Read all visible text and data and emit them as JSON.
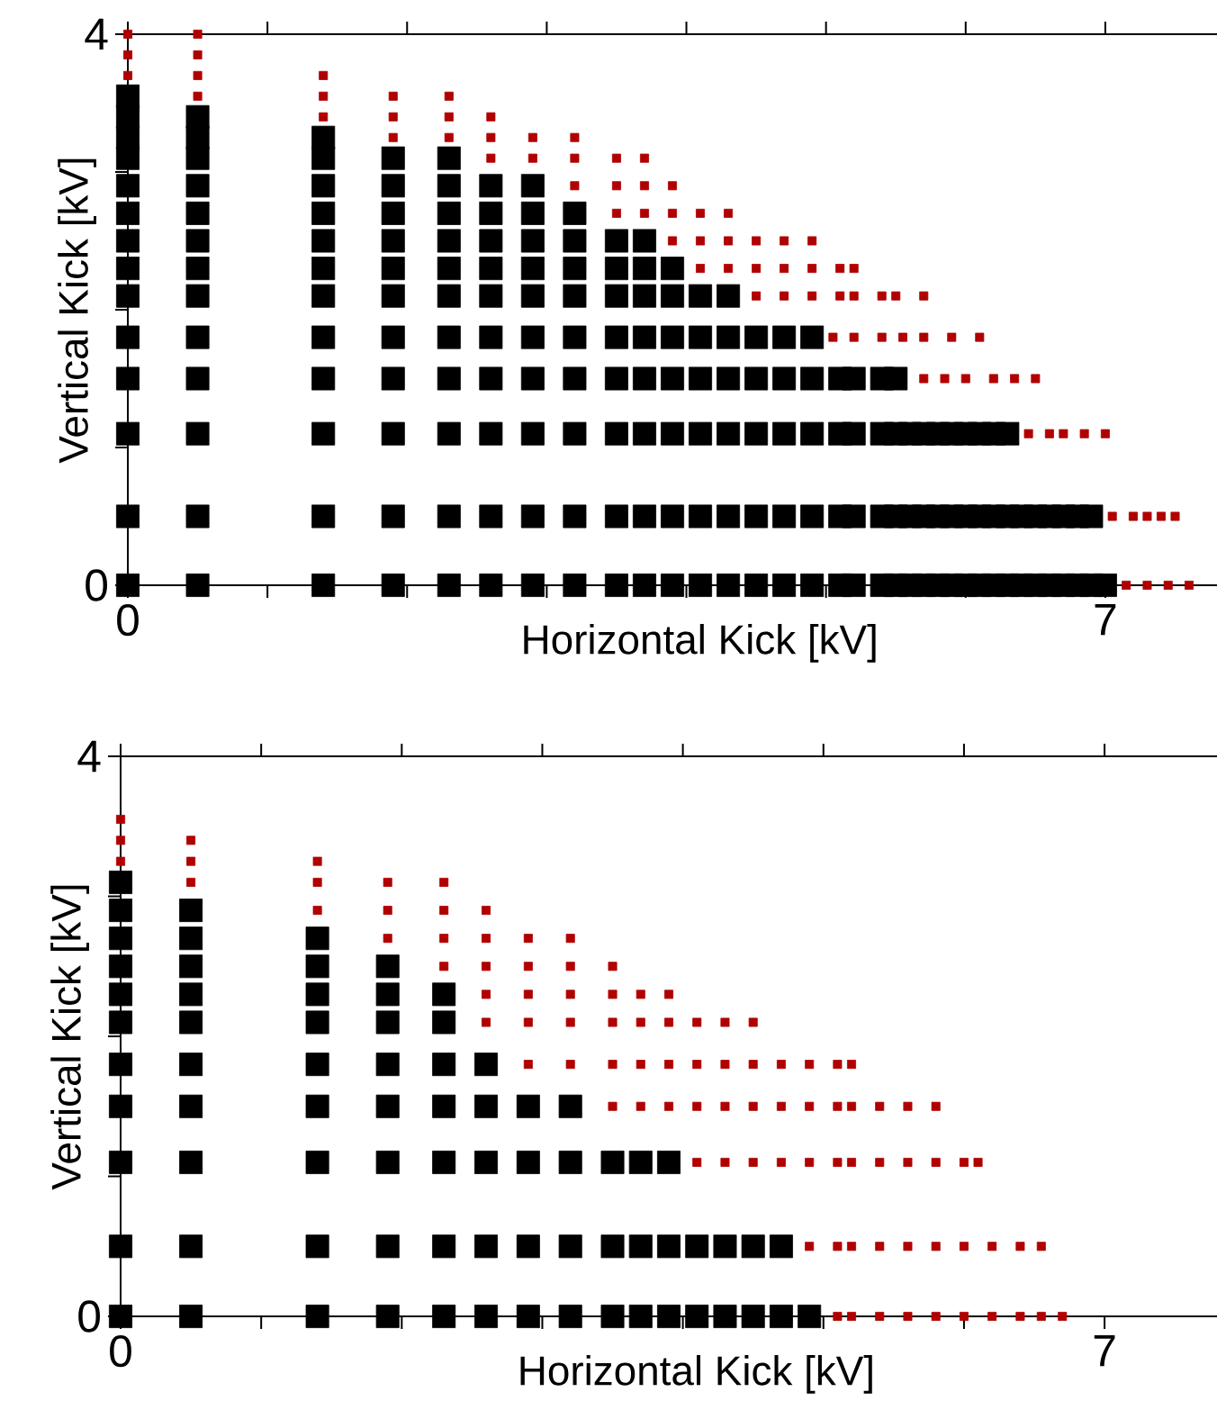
{
  "chart_data": [
    {
      "type": "scatter",
      "xlabel": "Horizontal Kick [kV]",
      "ylabel": "Vertical Kick [kV]",
      "xlim": [
        0,
        7.8
      ],
      "ylim": [
        0,
        4
      ],
      "marker": "square",
      "xticks": [
        0,
        {
          "value": 1,
          "label": null
        },
        {
          "value": 2,
          "label": null
        },
        {
          "value": 3,
          "label": null
        },
        {
          "value": 4,
          "label": null
        },
        {
          "value": 5,
          "label": null
        },
        {
          "value": 6,
          "label": null
        },
        7
      ],
      "yticks": [
        0,
        {
          "value": 1,
          "label": null
        },
        {
          "value": 2,
          "label": null
        },
        {
          "value": 3,
          "label": null
        },
        4
      ],
      "series": [
        {
          "color": "#000000",
          "x": [
            0,
            0.5,
            1.4,
            1.9,
            2.3,
            2.6,
            2.9,
            3.2,
            3.5,
            3.7,
            3.9,
            4.1,
            4.3,
            4.5,
            4.7,
            4.9,
            5.1,
            5.2,
            5.4,
            5.5,
            5.6,
            5.7,
            5.8,
            5.9,
            6.0,
            6.1,
            6.2,
            6.3,
            6.4,
            6.5,
            6.6,
            6.7,
            6.8,
            6.9,
            7.0,
            0,
            0.5,
            1.4,
            1.9,
            2.3,
            2.6,
            2.9,
            3.2,
            3.5,
            3.7,
            3.9,
            4.1,
            4.3,
            4.5,
            4.7,
            4.9,
            5.1,
            5.2,
            5.4,
            5.5,
            5.6,
            5.7,
            5.8,
            5.9,
            6.0,
            6.1,
            6.2,
            6.3,
            6.4,
            6.5,
            6.6,
            6.7,
            6.8,
            6.9,
            0,
            0.5,
            1.4,
            1.9,
            2.3,
            2.6,
            2.9,
            3.2,
            3.5,
            3.7,
            3.9,
            4.1,
            4.3,
            4.5,
            4.7,
            4.9,
            5.1,
            5.2,
            5.4,
            5.5,
            5.6,
            5.7,
            5.8,
            5.9,
            6.0,
            6.1,
            6.2,
            6.3,
            0,
            0.5,
            1.4,
            1.9,
            2.3,
            2.6,
            2.9,
            3.2,
            3.5,
            3.7,
            3.9,
            4.1,
            4.3,
            4.5,
            4.7,
            4.9,
            5.1,
            5.2,
            5.4,
            5.5,
            0,
            0.5,
            1.4,
            1.9,
            2.3,
            2.6,
            2.9,
            3.2,
            3.5,
            3.7,
            3.9,
            4.1,
            4.3,
            4.5,
            4.7,
            4.9,
            0,
            0.5,
            1.4,
            1.9,
            2.3,
            2.6,
            2.9,
            3.2,
            3.5,
            3.7,
            3.9,
            4.1,
            4.3,
            0,
            0.5,
            1.4,
            1.9,
            2.3,
            2.6,
            2.9,
            3.2,
            3.5,
            3.7,
            3.9,
            0,
            0.5,
            1.4,
            1.9,
            2.3,
            2.6,
            2.9,
            3.2,
            3.5,
            3.7,
            0,
            0.5,
            1.4,
            1.9,
            2.3,
            2.6,
            2.9,
            3.2,
            0,
            0.5,
            1.4,
            1.9,
            2.3,
            2.6,
            2.9,
            0,
            0.5,
            1.4,
            1.9,
            2.3,
            0,
            0.5,
            1.4,
            0,
            0.5,
            0
          ],
          "values": [
            0,
            0,
            0,
            0,
            0,
            0,
            0,
            0,
            0,
            0,
            0,
            0,
            0,
            0,
            0,
            0,
            0,
            0,
            0,
            0,
            0,
            0,
            0,
            0,
            0,
            0,
            0,
            0,
            0,
            0,
            0,
            0,
            0,
            0,
            0,
            0.5,
            0.5,
            0.5,
            0.5,
            0.5,
            0.5,
            0.5,
            0.5,
            0.5,
            0.5,
            0.5,
            0.5,
            0.5,
            0.5,
            0.5,
            0.5,
            0.5,
            0.5,
            0.5,
            0.5,
            0.5,
            0.5,
            0.5,
            0.5,
            0.5,
            0.5,
            0.5,
            0.5,
            0.5,
            0.5,
            0.5,
            0.5,
            0.5,
            0.5,
            1.1,
            1.1,
            1.1,
            1.1,
            1.1,
            1.1,
            1.1,
            1.1,
            1.1,
            1.1,
            1.1,
            1.1,
            1.1,
            1.1,
            1.1,
            1.1,
            1.1,
            1.1,
            1.1,
            1.1,
            1.1,
            1.1,
            1.1,
            1.1,
            1.1,
            1.1,
            1.1,
            1.1,
            1.5,
            1.5,
            1.5,
            1.5,
            1.5,
            1.5,
            1.5,
            1.5,
            1.5,
            1.5,
            1.5,
            1.5,
            1.5,
            1.5,
            1.5,
            1.5,
            1.5,
            1.5,
            1.5,
            1.5,
            1.8,
            1.8,
            1.8,
            1.8,
            1.8,
            1.8,
            1.8,
            1.8,
            1.8,
            1.8,
            1.8,
            1.8,
            1.8,
            1.8,
            1.8,
            1.8,
            2.1,
            2.1,
            2.1,
            2.1,
            2.1,
            2.1,
            2.1,
            2.1,
            2.1,
            2.1,
            2.1,
            2.1,
            2.1,
            2.3,
            2.3,
            2.3,
            2.3,
            2.3,
            2.3,
            2.3,
            2.3,
            2.3,
            2.3,
            2.3,
            2.5,
            2.5,
            2.5,
            2.5,
            2.5,
            2.5,
            2.5,
            2.5,
            2.5,
            2.5,
            2.7,
            2.7,
            2.7,
            2.7,
            2.7,
            2.7,
            2.7,
            2.7,
            2.9,
            2.9,
            2.9,
            2.9,
            2.9,
            2.9,
            2.9,
            3.1,
            3.1,
            3.1,
            3.1,
            3.1,
            3.25,
            3.25,
            3.25,
            3.4,
            3.4,
            3.55
          ]
        },
        {
          "color": "#b00000",
          "x": [
            7.15,
            7.3,
            7.45,
            7.6,
            7.05,
            7.2,
            7.3,
            7.4,
            7.5,
            6.45,
            6.6,
            6.7,
            6.85,
            7.0,
            5.7,
            5.85,
            6.0,
            6.2,
            6.35,
            6.5,
            5.05,
            5.2,
            5.4,
            5.55,
            5.7,
            5.9,
            6.1,
            4.5,
            4.7,
            4.9,
            5.1,
            5.2,
            5.4,
            5.5,
            5.7,
            4.1,
            4.3,
            4.5,
            4.7,
            4.9,
            5.1,
            5.2,
            3.9,
            4.1,
            4.3,
            4.5,
            4.7,
            4.9,
            3.5,
            3.7,
            3.9,
            4.1,
            4.3,
            3.2,
            3.5,
            3.7,
            3.9,
            2.6,
            2.9,
            3.2,
            3.5,
            3.7,
            1.9,
            2.3,
            2.6,
            2.9,
            3.2,
            1.4,
            1.9,
            2.3,
            2.6,
            0.5,
            1.4,
            1.9,
            2.3,
            0,
            0.5,
            1.4,
            0,
            0.5,
            0,
            0.5
          ],
          "values": [
            0,
            0,
            0,
            0,
            0.5,
            0.5,
            0.5,
            0.5,
            0.5,
            1.1,
            1.1,
            1.1,
            1.1,
            1.1,
            1.5,
            1.5,
            1.5,
            1.5,
            1.5,
            1.5,
            1.8,
            1.8,
            1.8,
            1.8,
            1.8,
            1.8,
            1.8,
            2.1,
            2.1,
            2.1,
            2.1,
            2.1,
            2.1,
            2.1,
            2.1,
            2.3,
            2.3,
            2.3,
            2.3,
            2.3,
            2.3,
            2.3,
            2.5,
            2.5,
            2.5,
            2.5,
            2.5,
            2.5,
            2.7,
            2.7,
            2.7,
            2.7,
            2.7,
            2.9,
            2.9,
            2.9,
            2.9,
            3.1,
            3.1,
            3.1,
            3.1,
            3.1,
            3.25,
            3.25,
            3.25,
            3.25,
            3.25,
            3.4,
            3.4,
            3.4,
            3.4,
            3.55,
            3.55,
            3.55,
            3.55,
            3.7,
            3.7,
            3.7,
            3.85,
            3.85,
            4,
            4
          ]
        }
      ]
    },
    {
      "type": "scatter",
      "xlabel": "Horizontal Kick [kV]",
      "ylabel": "Vertical Kick [kV]",
      "xlim": [
        0,
        7.8
      ],
      "ylim": [
        0,
        4
      ],
      "marker": "square",
      "xticks": [
        0,
        {
          "value": 1,
          "label": null
        },
        {
          "value": 2,
          "label": null
        },
        {
          "value": 3,
          "label": null
        },
        {
          "value": 4,
          "label": null
        },
        {
          "value": 5,
          "label": null
        },
        {
          "value": 6,
          "label": null
        },
        7
      ],
      "yticks": [
        0,
        {
          "value": 1,
          "label": null
        },
        {
          "value": 2,
          "label": null
        },
        {
          "value": 3,
          "label": null
        },
        4
      ],
      "series": [
        {
          "color": "#000000",
          "x": [
            0,
            0.5,
            1.4,
            1.9,
            2.3,
            2.6,
            2.9,
            3.2,
            3.5,
            3.7,
            3.9,
            4.1,
            4.3,
            4.5,
            4.7,
            4.9,
            0,
            0.5,
            1.4,
            1.9,
            2.3,
            2.6,
            2.9,
            3.2,
            3.5,
            3.7,
            3.9,
            4.1,
            4.3,
            4.5,
            4.7,
            0,
            0.5,
            1.4,
            1.9,
            2.3,
            2.6,
            2.9,
            3.2,
            3.5,
            3.7,
            3.9,
            0,
            0.5,
            1.4,
            1.9,
            2.3,
            2.6,
            2.9,
            3.2,
            0,
            0.5,
            1.4,
            1.9,
            2.3,
            2.6,
            0,
            0.5,
            1.4,
            1.9,
            2.3,
            0,
            0.5,
            1.4,
            1.9,
            2.3,
            0,
            0.5,
            1.4,
            1.9,
            0,
            0.5,
            1.4,
            0,
            0.5,
            0
          ],
          "values": [
            0,
            0,
            0,
            0,
            0,
            0,
            0,
            0,
            0,
            0,
            0,
            0,
            0,
            0,
            0,
            0,
            0.5,
            0.5,
            0.5,
            0.5,
            0.5,
            0.5,
            0.5,
            0.5,
            0.5,
            0.5,
            0.5,
            0.5,
            0.5,
            0.5,
            0.5,
            1.1,
            1.1,
            1.1,
            1.1,
            1.1,
            1.1,
            1.1,
            1.1,
            1.1,
            1.1,
            1.1,
            1.5,
            1.5,
            1.5,
            1.5,
            1.5,
            1.5,
            1.5,
            1.5,
            1.8,
            1.8,
            1.8,
            1.8,
            1.8,
            1.8,
            2.1,
            2.1,
            2.1,
            2.1,
            2.1,
            2.3,
            2.3,
            2.3,
            2.3,
            2.3,
            2.5,
            2.5,
            2.5,
            2.5,
            2.7,
            2.7,
            2.7,
            2.9,
            2.9,
            3.1
          ]
        },
        {
          "color": "#b00000",
          "x": [
            5.1,
            5.2,
            5.4,
            5.6,
            5.8,
            6.0,
            6.2,
            6.4,
            6.55,
            6.7,
            4.9,
            5.1,
            5.2,
            5.4,
            5.6,
            5.8,
            6.0,
            6.2,
            6.4,
            6.55,
            4.1,
            4.3,
            4.5,
            4.7,
            4.9,
            5.1,
            5.2,
            5.4,
            5.6,
            5.8,
            6.0,
            6.1,
            3.5,
            3.7,
            3.9,
            4.1,
            4.3,
            4.5,
            4.7,
            4.9,
            5.1,
            5.2,
            5.4,
            5.6,
            5.8,
            2.9,
            3.2,
            3.5,
            3.7,
            3.9,
            4.1,
            4.3,
            4.5,
            4.7,
            4.9,
            5.1,
            5.2,
            2.6,
            2.9,
            3.2,
            3.5,
            3.7,
            3.9,
            4.1,
            4.3,
            4.5,
            2.6,
            2.9,
            3.2,
            3.5,
            3.7,
            3.9,
            2.3,
            2.6,
            2.9,
            3.2,
            3.5,
            1.9,
            2.3,
            2.6,
            2.9,
            3.2,
            1.4,
            1.9,
            2.3,
            2.6,
            0.5,
            1.4,
            1.9,
            2.3,
            0,
            0.5,
            1.4,
            0,
            0.5,
            0
          ],
          "values": [
            0,
            0,
            0,
            0,
            0,
            0,
            0,
            0,
            0,
            0,
            0.5,
            0.5,
            0.5,
            0.5,
            0.5,
            0.5,
            0.5,
            0.5,
            0.5,
            0.5,
            1.1,
            1.1,
            1.1,
            1.1,
            1.1,
            1.1,
            1.1,
            1.1,
            1.1,
            1.1,
            1.1,
            1.1,
            1.5,
            1.5,
            1.5,
            1.5,
            1.5,
            1.5,
            1.5,
            1.5,
            1.5,
            1.5,
            1.5,
            1.5,
            1.5,
            1.8,
            1.8,
            1.8,
            1.8,
            1.8,
            1.8,
            1.8,
            1.8,
            1.8,
            1.8,
            1.8,
            1.8,
            2.1,
            2.1,
            2.1,
            2.1,
            2.1,
            2.1,
            2.1,
            2.1,
            2.1,
            2.3,
            2.3,
            2.3,
            2.3,
            2.3,
            2.3,
            2.5,
            2.5,
            2.5,
            2.5,
            2.5,
            2.7,
            2.7,
            2.7,
            2.7,
            2.7,
            2.9,
            2.9,
            2.9,
            2.9,
            3.1,
            3.1,
            3.1,
            3.1,
            3.25,
            3.25,
            3.25,
            3.4,
            3.4,
            3.55
          ]
        }
      ]
    }
  ]
}
